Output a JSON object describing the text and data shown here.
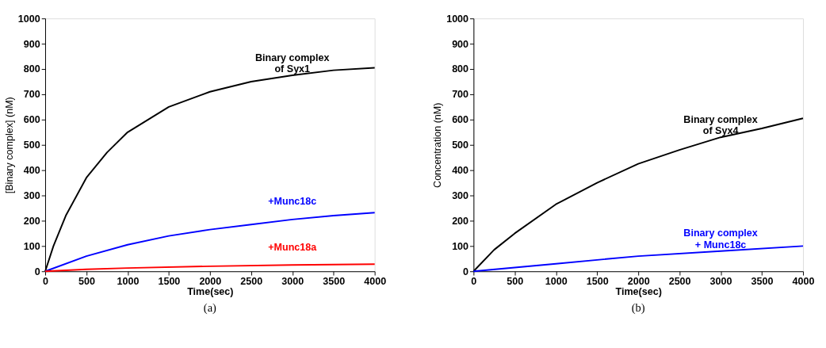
{
  "chart_data": [
    {
      "type": "line",
      "title": "(a)",
      "xlabel": "Time(sec)",
      "ylabel": "[Binary complex] (nM)",
      "xlim": [
        0,
        4000
      ],
      "ylim": [
        0,
        1000
      ],
      "xticks": [
        0,
        500,
        1000,
        1500,
        2000,
        2500,
        3000,
        3500,
        4000
      ],
      "yticks": [
        0,
        100,
        200,
        300,
        400,
        500,
        600,
        700,
        800,
        900,
        1000
      ],
      "grid": false,
      "series": [
        {
          "name": "Binary complex\nof Syx1",
          "color": "#000000",
          "x": [
            0,
            100,
            250,
            500,
            750,
            1000,
            1500,
            2000,
            2500,
            3000,
            3500,
            4000
          ],
          "values": [
            0,
            100,
            220,
            370,
            470,
            550,
            650,
            710,
            750,
            775,
            795,
            805
          ]
        },
        {
          "name": "+Munc18c",
          "color": "#0000ff",
          "x": [
            0,
            500,
            1000,
            1500,
            2000,
            2500,
            3000,
            3500,
            4000
          ],
          "values": [
            0,
            60,
            105,
            140,
            165,
            185,
            205,
            220,
            232
          ]
        },
        {
          "name": "+Munc18a",
          "color": "#ff0000",
          "x": [
            0,
            500,
            1000,
            2000,
            3000,
            4000
          ],
          "values": [
            0,
            8,
            13,
            20,
            25,
            28
          ]
        }
      ]
    },
    {
      "type": "line",
      "title": "(b)",
      "xlabel": "Time(sec)",
      "ylabel": "Concentration (nM)",
      "xlim": [
        0,
        4000
      ],
      "ylim": [
        0,
        1000
      ],
      "xticks": [
        0,
        500,
        1000,
        1500,
        2000,
        2500,
        3000,
        3500,
        4000
      ],
      "yticks": [
        0,
        100,
        200,
        300,
        400,
        500,
        600,
        700,
        800,
        900,
        1000
      ],
      "grid": false,
      "series": [
        {
          "name": "Binary complex\nof Syx4",
          "color": "#000000",
          "x": [
            0,
            250,
            500,
            1000,
            1500,
            2000,
            2500,
            3000,
            3500,
            4000
          ],
          "values": [
            0,
            85,
            150,
            265,
            350,
            425,
            480,
            530,
            565,
            605
          ]
        },
        {
          "name": "Binary complex\n+ Munc18c",
          "color": "#0000ff",
          "x": [
            0,
            1000,
            2000,
            3000,
            4000
          ],
          "values": [
            0,
            30,
            60,
            80,
            100
          ]
        }
      ]
    }
  ]
}
